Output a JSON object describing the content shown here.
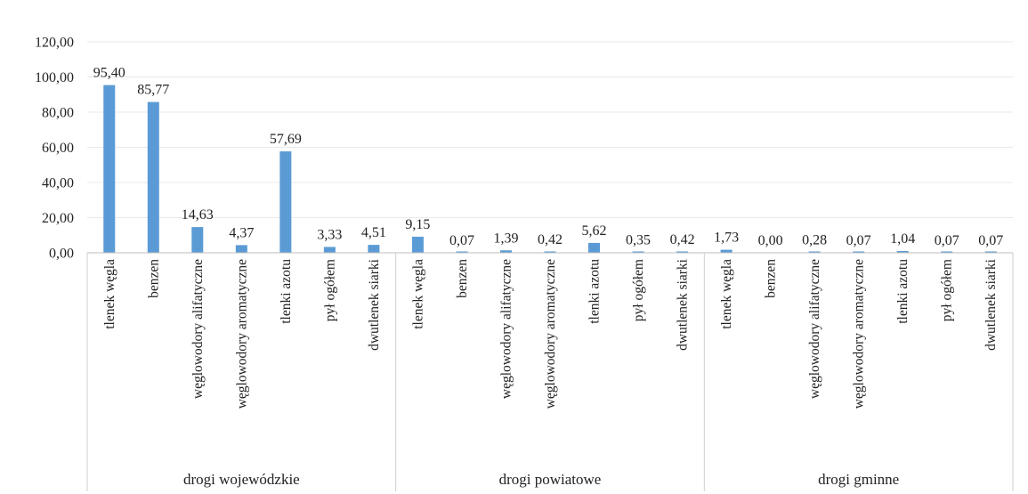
{
  "chart_data": {
    "type": "bar",
    "title": "",
    "xlabel": "",
    "ylabel": "",
    "ylim": [
      0,
      120
    ],
    "yticks": [
      "0,00",
      "20,00",
      "40,00",
      "60,00",
      "80,00",
      "100,00",
      "120,00"
    ],
    "grid": true,
    "legend": "none",
    "bar_color": "#5b9bd5",
    "groups": [
      {
        "name": "drogi wojewódzkie",
        "categories": [
          "tlenek węgla",
          "benzen",
          "węglowodory alifatyczne",
          "węglowodory aromatyczne",
          "tlenki azotu",
          "pył ogółem",
          "dwutlenek siarki"
        ],
        "values": [
          95.4,
          85.77,
          14.63,
          4.37,
          57.69,
          3.33,
          4.51
        ],
        "labels": [
          "95,40",
          "85,77",
          "14,63",
          "4,37",
          "57,69",
          "3,33",
          "4,51"
        ]
      },
      {
        "name": "drogi powiatowe",
        "categories": [
          "tlenek węgla",
          "benzen",
          "węglowodory alifatyczne",
          "węglowodory aromatyczne",
          "tlenki azotu",
          "pył ogółem",
          "dwutlenek siarki"
        ],
        "values": [
          9.15,
          0.07,
          1.39,
          0.42,
          5.62,
          0.35,
          0.42
        ],
        "labels": [
          "9,15",
          "0,07",
          "1,39",
          "0,42",
          "5,62",
          "0,35",
          "0,42"
        ]
      },
      {
        "name": "drogi gminne",
        "categories": [
          "tlenek węgla",
          "benzen",
          "węglowodory alifatyczne",
          "węglowodory aromatyczne",
          "tlenki azotu",
          "pył ogółem",
          "dwutlenek siarki"
        ],
        "values": [
          1.73,
          0.0,
          0.28,
          0.07,
          1.04,
          0.07,
          0.07
        ],
        "labels": [
          "1,73",
          "0,00",
          "0,28",
          "0,07",
          "1,04",
          "0,07",
          "0,07"
        ]
      }
    ]
  }
}
